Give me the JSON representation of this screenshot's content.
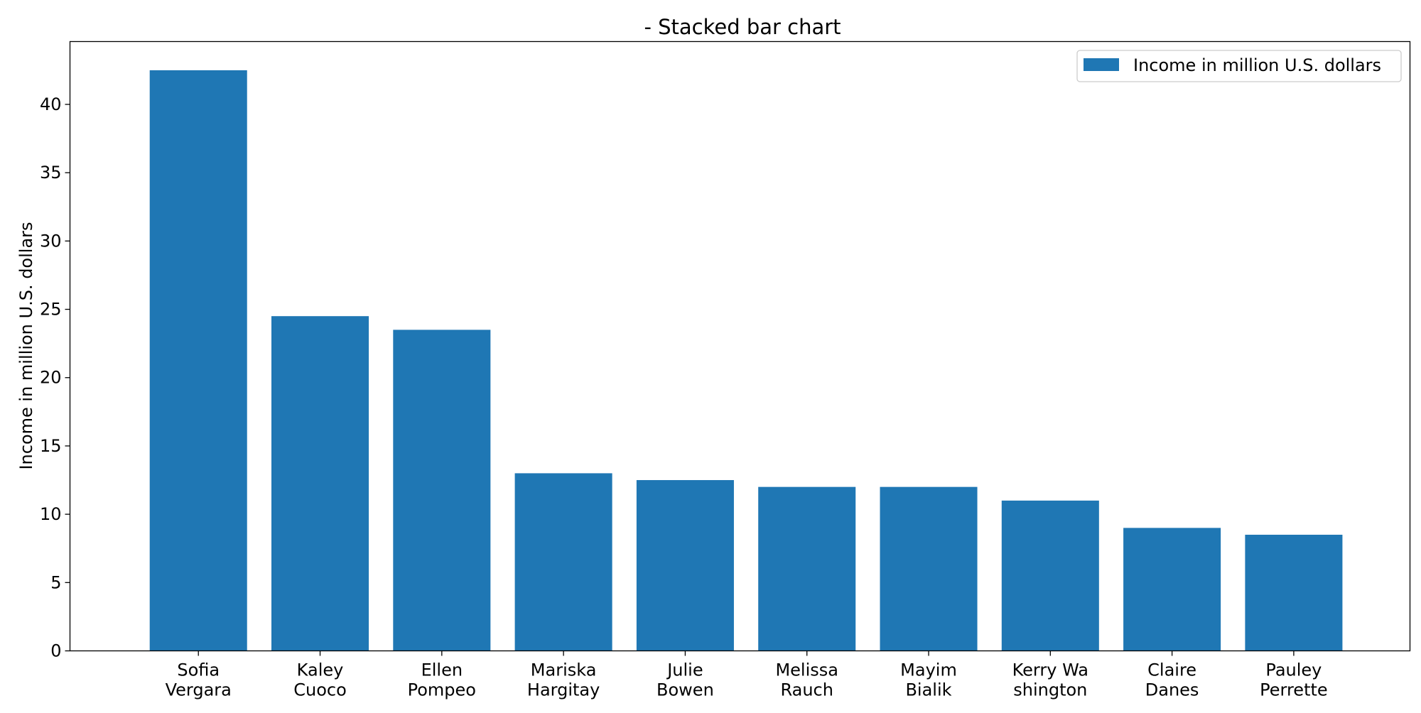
{
  "chart_data": {
    "type": "bar",
    "title": "- Stacked bar chart",
    "xlabel": "",
    "ylabel": "Income in million U.S. dollars",
    "categories": [
      [
        "Sofia",
        "Vergara"
      ],
      [
        "Kaley",
        "Cuoco"
      ],
      [
        "Ellen",
        "Pompeo"
      ],
      [
        "Mariska",
        "Hargitay"
      ],
      [
        "Julie",
        "Bowen"
      ],
      [
        "Melissa",
        "Rauch"
      ],
      [
        "Mayim",
        "Bialik"
      ],
      [
        "Kerry Wa",
        "shington"
      ],
      [
        "Claire",
        "Danes"
      ],
      [
        "Pauley",
        "Perrette"
      ]
    ],
    "series": [
      {
        "name": "Income in million U.S. dollars",
        "values": [
          42.5,
          24.5,
          23.5,
          13,
          12.5,
          12,
          12,
          11,
          9,
          8.5
        ],
        "color": "#1f77b4"
      }
    ],
    "ylim": [
      0,
      44.6
    ],
    "yticks": [
      0,
      5,
      10,
      15,
      20,
      25,
      30,
      35,
      40
    ],
    "grid": false,
    "legend_position": "top-right"
  }
}
